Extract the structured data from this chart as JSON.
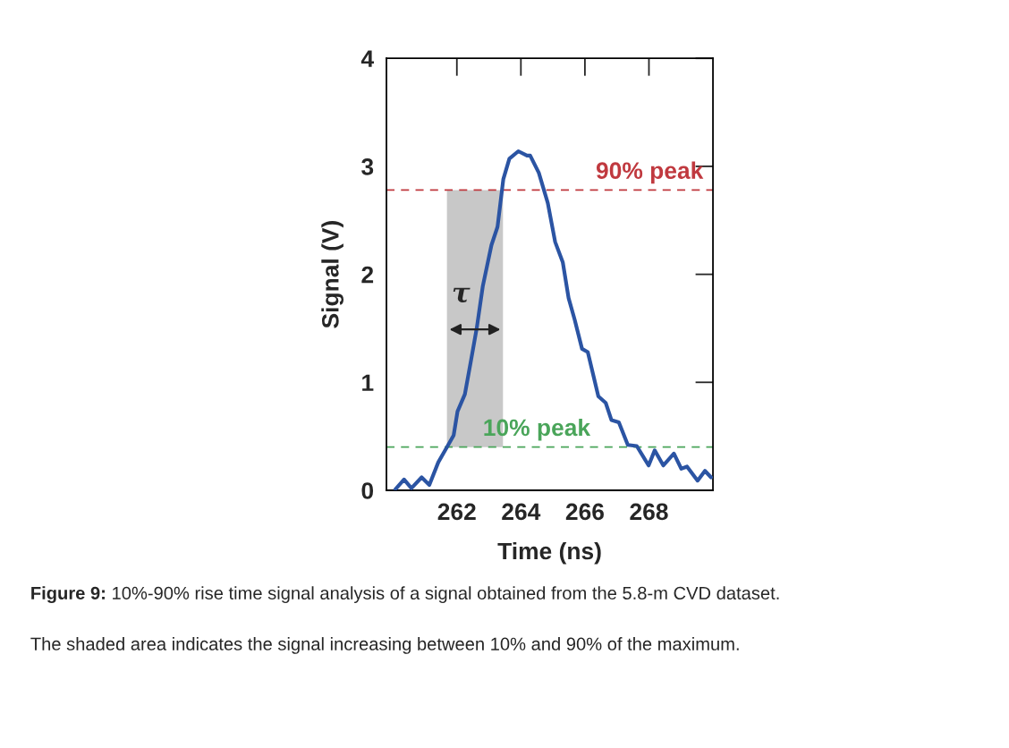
{
  "chart_data": {
    "type": "line",
    "xlabel": "Time (ns)",
    "ylabel": "Signal (V)",
    "xlim": [
      259.8,
      270
    ],
    "ylim": [
      0,
      4
    ],
    "xticks": [
      262,
      264,
      266,
      268
    ],
    "yticks": [
      0,
      1,
      2,
      3,
      4
    ],
    "grid": false,
    "marker": "none",
    "line_style": "solid",
    "series": [
      {
        "color": "#2b54a3",
        "x": [
          260.08,
          260.35,
          260.58,
          260.9,
          261.14,
          261.42,
          261.69,
          261.9,
          262.02,
          262.25,
          262.44,
          262.62,
          262.81,
          263.08,
          263.27,
          263.45,
          263.64,
          263.92,
          264.19,
          264.29,
          264.56,
          264.84,
          265.07,
          265.31,
          265.49,
          265.68,
          265.91,
          266.09,
          266.42,
          266.65,
          266.83,
          267.06,
          267.34,
          267.62,
          267.99,
          268.18,
          268.45,
          268.78,
          269.01,
          269.19,
          269.52,
          269.75,
          269.94
        ],
        "values": [
          0.01,
          0.1,
          0.02,
          0.12,
          0.05,
          0.26,
          0.4,
          0.51,
          0.73,
          0.89,
          1.2,
          1.5,
          1.89,
          2.27,
          2.44,
          2.88,
          3.07,
          3.14,
          3.1,
          3.1,
          2.94,
          2.66,
          2.3,
          2.11,
          1.78,
          1.58,
          1.31,
          1.28,
          0.87,
          0.81,
          0.65,
          0.63,
          0.42,
          0.41,
          0.23,
          0.37,
          0.23,
          0.34,
          0.2,
          0.22,
          0.09,
          0.18,
          0.12
        ]
      }
    ],
    "ref_lines": [
      {
        "axis": "y",
        "value": 2.78,
        "label": "90% peak",
        "color": "#c0393f",
        "line_style": "dashed"
      },
      {
        "axis": "y",
        "value": 0.4,
        "label": "10% peak",
        "color": "#4aa55a",
        "line_style": "dashed"
      }
    ],
    "bands": [
      {
        "axis": "x",
        "from": 261.69,
        "to": 263.44,
        "color": "#c8c8c8"
      }
    ],
    "annotations": [
      "τ",
      "Figure 9: 10%-90% rise time signal analysis of a signal obtained from the 5.8-m CVD dataset.",
      "The shaded area indicates the signal increasing between 10% and 90% of the maximum."
    ]
  }
}
